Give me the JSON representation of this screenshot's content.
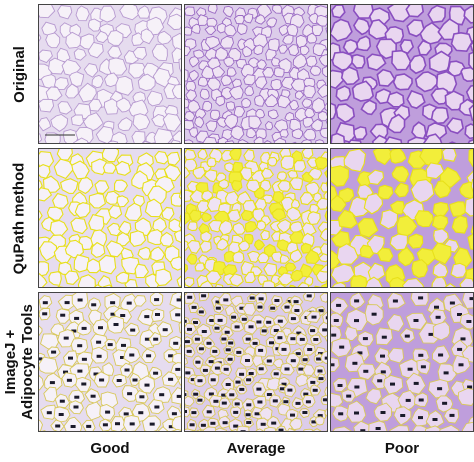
{
  "rows": [
    {
      "id": "original",
      "lines": [
        "Original"
      ]
    },
    {
      "id": "qupath",
      "lines": [
        "QuPath method"
      ]
    },
    {
      "id": "imagej",
      "lines": [
        "ImageJ +",
        "Adipocyte Tools"
      ]
    }
  ],
  "columns": [
    {
      "id": "good",
      "label": "Good"
    },
    {
      "id": "average",
      "label": "Average"
    },
    {
      "id": "poor",
      "label": "Poor"
    }
  ],
  "colors": {
    "tissue_fill_good": "#f6f1f8",
    "tissue_fill_average": "#efe3f3",
    "tissue_fill_poor": "#e9d6f0",
    "membrane_good": "#b79ad0",
    "membrane_average": "#9b6cc4",
    "membrane_poor": "#8a4fc0",
    "qupath_outline": "#e8e01a",
    "qupath_fill": "#f2ee3a",
    "imagej_outline": "#d8c85a",
    "imagej_marker": "#1a1a2a"
  }
}
